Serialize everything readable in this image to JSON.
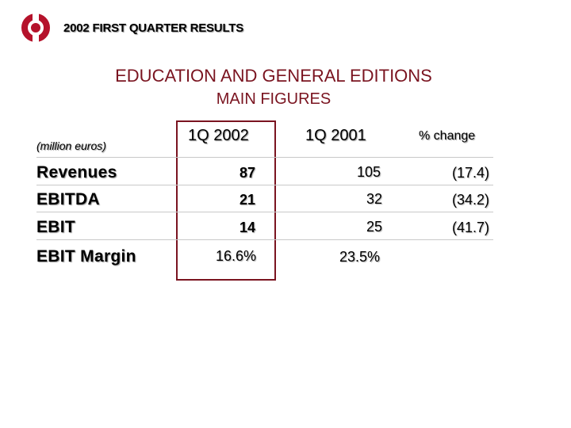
{
  "header": {
    "title": "2002 FIRST QUARTER RESULTS",
    "logo_color": "#b5122b"
  },
  "slide": {
    "title": "EDUCATION AND GENERAL EDITIONS",
    "subtitle": "MAIN FIGURES",
    "accent_color": "#7a1420"
  },
  "table": {
    "units_label": "(million euros)",
    "columns": [
      "1Q 2002",
      "1Q 2001",
      "% change"
    ],
    "rows": [
      {
        "label": "Revenues",
        "q2002": "87",
        "q2001": "105",
        "change": "(17.4)"
      },
      {
        "label": "EBITDA",
        "q2002": "21",
        "q2001": "32",
        "change": "(34.2)"
      },
      {
        "label": "EBIT",
        "q2002": "14",
        "q2001": "25",
        "change": "(41.7)"
      },
      {
        "label": "EBIT Margin",
        "q2002": "16.6%",
        "q2001": "23.5%",
        "change": ""
      }
    ]
  }
}
